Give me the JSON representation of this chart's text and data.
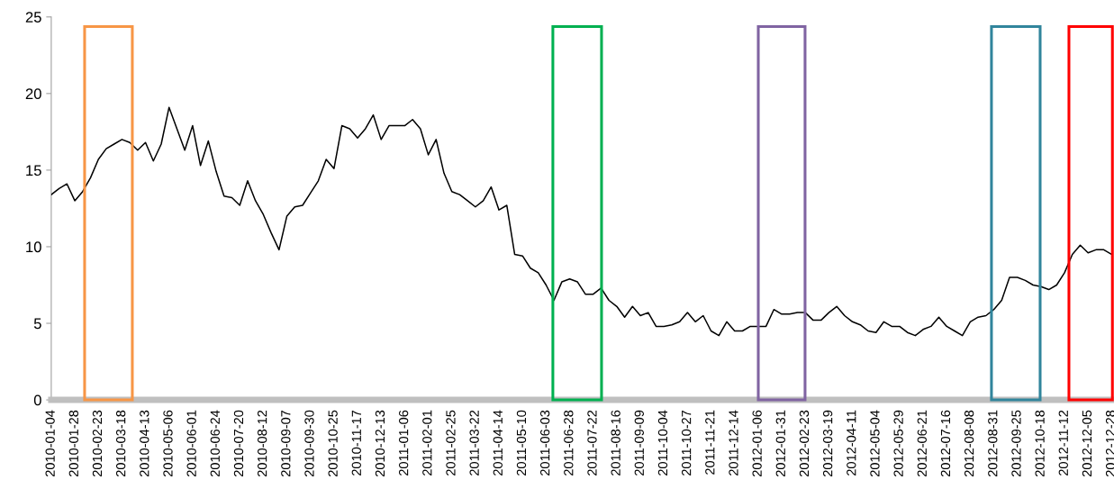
{
  "chart_data": {
    "type": "line",
    "categories": [
      "2010-01-04",
      null,
      null,
      "2010-01-28",
      null,
      null,
      "2010-02-23",
      null,
      null,
      "2010-03-18",
      null,
      null,
      "2010-04-13",
      null,
      null,
      "2010-05-06",
      null,
      null,
      "2010-06-01",
      null,
      null,
      "2010-06-24",
      null,
      null,
      "2010-07-20",
      null,
      null,
      "2010-08-12",
      null,
      null,
      "2010-09-07",
      null,
      null,
      "2010-09-30",
      null,
      null,
      "2010-10-25",
      null,
      null,
      "2010-11-17",
      null,
      null,
      "2010-12-13",
      null,
      null,
      "2011-01-06",
      null,
      null,
      "2011-02-01",
      null,
      null,
      "2011-02-25",
      null,
      null,
      "2011-03-22",
      null,
      null,
      "2011-04-14",
      null,
      null,
      "2011-05-10",
      null,
      null,
      "2011-06-03",
      null,
      null,
      "2011-06-28",
      null,
      null,
      "2011-07-22",
      null,
      null,
      "2011-08-16",
      null,
      null,
      "2011-09-09",
      null,
      null,
      "2011-10-04",
      null,
      null,
      "2011-10-27",
      null,
      null,
      "2011-11-21",
      null,
      null,
      "2011-12-14",
      null,
      null,
      "2012-01-06",
      null,
      null,
      "2012-01-31",
      null,
      null,
      "2012-02-23",
      null,
      null,
      "2012-03-19",
      null,
      null,
      "2012-04-11",
      null,
      null,
      "2012-05-04",
      null,
      null,
      "2012-05-29",
      null,
      null,
      "2012-06-21",
      null,
      null,
      "2012-07-16",
      null,
      null,
      "2012-08-08",
      null,
      null,
      "2012-08-31",
      null,
      null,
      "2012-09-25",
      null,
      null,
      "2012-10-18",
      null,
      null,
      "2012-11-12",
      null,
      null,
      "2012-12-05",
      null,
      null,
      "2012-12-28"
    ],
    "series": [
      {
        "color": "#000000",
        "values": [
          13.4,
          13.8,
          14.1,
          13.0,
          13.6,
          14.5,
          15.7,
          16.4,
          16.7,
          17.0,
          16.8,
          16.3,
          16.8,
          15.6,
          16.7,
          19.1,
          17.7,
          16.3,
          17.9,
          15.3,
          16.9,
          14.9,
          13.3,
          13.2,
          12.7,
          14.3,
          13.0,
          12.1,
          10.9,
          9.8,
          12.0,
          12.6,
          12.7,
          13.5,
          14.3,
          15.7,
          15.1,
          17.9,
          17.7,
          17.1,
          17.7,
          18.6,
          17.0,
          17.9,
          17.9,
          17.9,
          18.3,
          17.7,
          16.0,
          17.0,
          14.8,
          13.6,
          13.4,
          13.0,
          12.6,
          13.0,
          13.9,
          12.4,
          12.7,
          9.5,
          9.4,
          8.6,
          8.3,
          7.5,
          6.5,
          7.7,
          7.9,
          7.7,
          6.9,
          6.9,
          7.3,
          6.5,
          6.1,
          5.4,
          6.1,
          5.5,
          5.7,
          4.8,
          4.8,
          4.9,
          5.1,
          5.7,
          5.1,
          5.5,
          4.5,
          4.2,
          5.1,
          4.5,
          4.5,
          4.8,
          4.8,
          4.8,
          5.9,
          5.6,
          5.6,
          5.7,
          5.7,
          5.2,
          5.2,
          5.7,
          6.1,
          5.5,
          5.1,
          4.9,
          4.5,
          4.4,
          5.1,
          4.8,
          4.8,
          4.4,
          4.2,
          4.6,
          4.8,
          5.4,
          4.8,
          4.5,
          4.2,
          5.1,
          5.4,
          5.5,
          5.9,
          6.5,
          8.0,
          8.0,
          7.8,
          7.5,
          7.4,
          7.2,
          7.5,
          8.3,
          9.5,
          10.1,
          9.6,
          9.8,
          9.8,
          9.5
        ]
      }
    ],
    "ylim": [
      0,
      25
    ],
    "yticks": [
      0,
      5,
      10,
      15,
      20,
      25
    ],
    "grid": false,
    "marker": "none",
    "line_style": "solid"
  }
}
